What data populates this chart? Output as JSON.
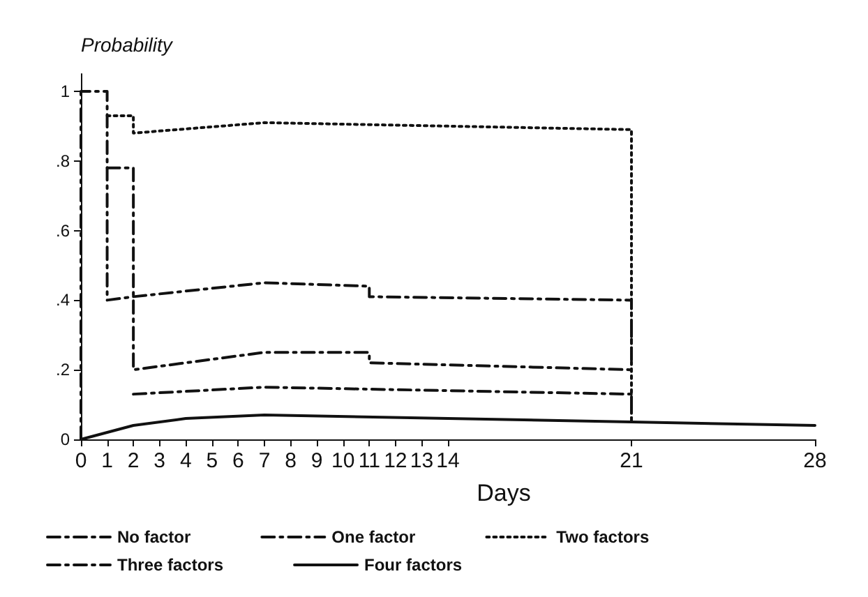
{
  "chart_data": {
    "type": "line",
    "ylabel": "Probability",
    "xlabel": "Days",
    "xlim": [
      0,
      28
    ],
    "xticks": [
      0,
      1,
      2,
      3,
      4,
      5,
      6,
      7,
      8,
      9,
      10,
      11,
      12,
      13,
      14,
      21,
      28
    ],
    "ylim": [
      0,
      1.05
    ],
    "yticks": [
      0,
      {
        "value": 0.2,
        "label": ".2"
      },
      {
        "value": 0.4,
        "label": ".4"
      },
      {
        "value": 0.6,
        "label": ".6"
      },
      {
        "value": 0.8,
        "label": ".8"
      },
      1
    ],
    "grid": false,
    "legend": "bottom",
    "marker": "none",
    "series": [
      {
        "name": "No factor",
        "color": "#111111",
        "line_style": "dashed",
        "x": [
          2,
          7,
          14,
          21,
          21
        ],
        "values": [
          0.13,
          0.15,
          0.14,
          0.13,
          0.06
        ]
      },
      {
        "name": "One factor",
        "color": "#111111",
        "line_style": "dashed",
        "x": [
          0,
          0,
          1,
          1,
          2,
          7,
          11,
          11,
          21,
          21
        ],
        "values": [
          0,
          1,
          1,
          0.4,
          0.41,
          0.45,
          0.44,
          0.41,
          0.4,
          0.22
        ]
      },
      {
        "name": "Two factors",
        "color": "#111111",
        "line_style": "dotted",
        "x": [
          1,
          2,
          2,
          7,
          21,
          21
        ],
        "values": [
          0.93,
          0.93,
          0.88,
          0.91,
          0.89,
          0.05
        ]
      },
      {
        "name": "Three factors",
        "color": "#111111",
        "line_style": "dashed",
        "x": [
          1,
          2,
          2,
          7,
          11,
          11,
          21
        ],
        "values": [
          0.78,
          0.78,
          0.2,
          0.25,
          0.25,
          0.22,
          0.2
        ]
      },
      {
        "name": "Four factors",
        "color": "#111111",
        "line_style": "solid",
        "x": [
          0,
          2,
          4,
          7,
          14,
          21,
          28
        ],
        "values": [
          0,
          0.04,
          0.06,
          0.07,
          0.06,
          0.05,
          0.04
        ]
      }
    ]
  }
}
